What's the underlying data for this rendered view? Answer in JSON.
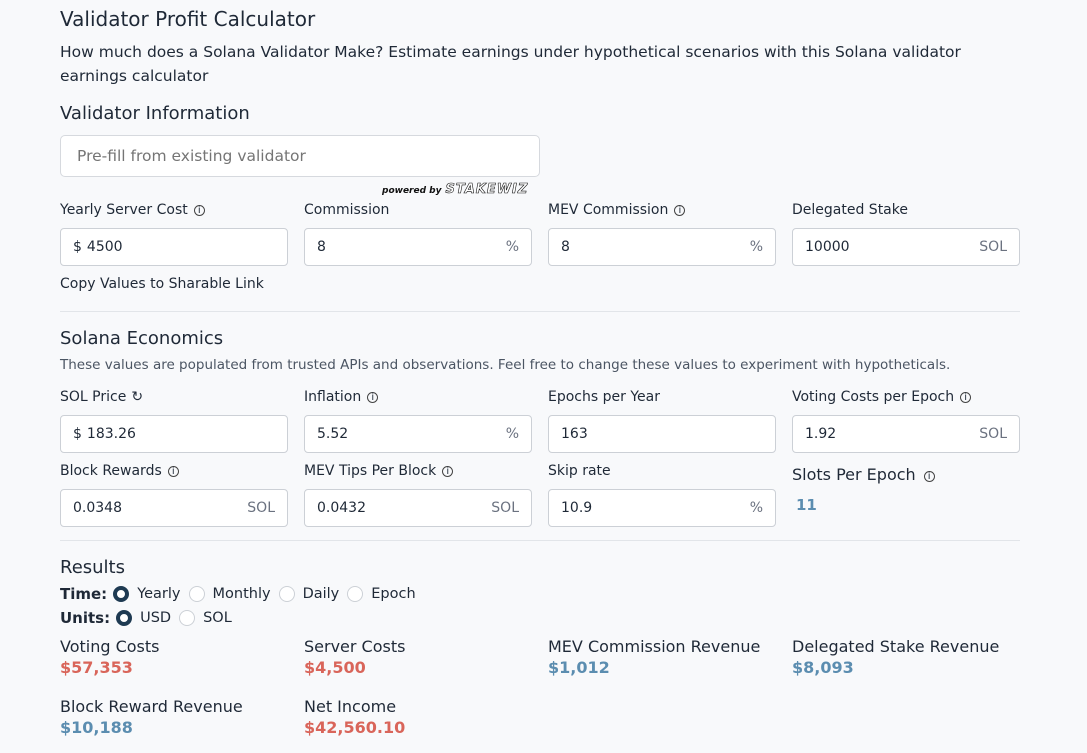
{
  "title": "Validator Profit Calculator",
  "description": "How much does a Solana Validator Make? Estimate earnings under hypothetical scenarios with this Solana validator earnings calculator",
  "validator": {
    "heading": "Validator Information",
    "prefill_placeholder": "Pre-fill from existing validator",
    "powered_by": "powered by",
    "brand": "STAKEWIZ",
    "fields": [
      {
        "label": "Yearly Server Cost",
        "info": true,
        "prefix": "$",
        "value": "4500",
        "unit": ""
      },
      {
        "label": "Commission",
        "info": false,
        "prefix": "",
        "value": "8",
        "unit": "%"
      },
      {
        "label": "MEV Commission",
        "info": true,
        "prefix": "",
        "value": "8",
        "unit": "%"
      },
      {
        "label": "Delegated Stake",
        "info": false,
        "prefix": "",
        "value": "10000",
        "unit": "SOL"
      }
    ],
    "copy_link": "Copy Values to Sharable Link"
  },
  "economics": {
    "heading": "Solana Economics",
    "subtitle": "These values are populated from trusted APIs and observations. Feel free to change these values to experiment with hypotheticals.",
    "fields": [
      {
        "label": "SOL Price",
        "refresh": true,
        "prefix": "$",
        "value": "183.26",
        "unit": ""
      },
      {
        "label": "Inflation",
        "info": true,
        "prefix": "",
        "value": "5.52",
        "unit": "%"
      },
      {
        "label": "Epochs per Year",
        "info": false,
        "prefix": "",
        "value": "163",
        "unit": ""
      },
      {
        "label": "Voting Costs per Epoch",
        "info": true,
        "prefix": "",
        "value": "1.92",
        "unit": "SOL"
      },
      {
        "label": "Block Rewards",
        "info": true,
        "prefix": "",
        "value": "0.0348",
        "unit": "SOL"
      },
      {
        "label": "MEV Tips Per Block",
        "info": true,
        "prefix": "",
        "value": "0.0432",
        "unit": "SOL"
      },
      {
        "label": "Skip rate",
        "info": false,
        "prefix": "",
        "value": "10.9",
        "unit": "%"
      }
    ],
    "slots_label": "Slots Per Epoch",
    "slots_value": "11"
  },
  "results": {
    "heading": "Results",
    "time_label": "Time:",
    "time_options": [
      "Yearly",
      "Monthly",
      "Daily",
      "Epoch"
    ],
    "time_selected": "Yearly",
    "units_label": "Units:",
    "unit_options": [
      "USD",
      "SOL"
    ],
    "unit_selected": "USD",
    "items": [
      {
        "label": "Voting Costs",
        "value": "$57,353",
        "tone": "cost"
      },
      {
        "label": "Server Costs",
        "value": "$4,500",
        "tone": "cost"
      },
      {
        "label": "MEV Commission Revenue",
        "value": "$1,012",
        "tone": "revenue"
      },
      {
        "label": "Delegated Stake Revenue",
        "value": "$8,093",
        "tone": "revenue"
      },
      {
        "label": "Block Reward Revenue",
        "value": "$10,188",
        "tone": "revenue"
      },
      {
        "label": "Net Income",
        "value": "$42,560.10",
        "tone": "cost"
      }
    ]
  },
  "colors": {
    "cost": "#d9655a",
    "revenue": "#5b8db0",
    "radio_selected": "#1e3a52"
  }
}
